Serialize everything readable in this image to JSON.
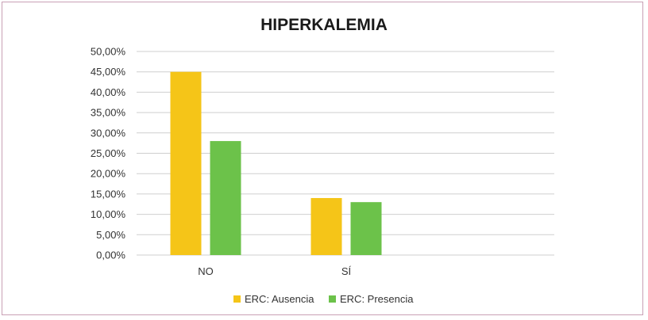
{
  "chart_data": {
    "type": "bar",
    "title": "HIPERKALEMIA",
    "categories": [
      "NO",
      "SÍ"
    ],
    "series": [
      {
        "name": "ERC: Ausencia",
        "values": [
          45.0,
          14.0
        ],
        "color": "#f5c518"
      },
      {
        "name": "ERC: Presencia",
        "values": [
          28.0,
          13.0
        ],
        "color": "#6cc24a"
      }
    ],
    "ylim": [
      0,
      50
    ],
    "yticks": [
      "0,00%",
      "5,00%",
      "10,00%",
      "15,00%",
      "20,00%",
      "25,00%",
      "30,00%",
      "35,00%",
      "40,00%",
      "45,00%",
      "50,00%"
    ],
    "grid": true,
    "legend": "bottom"
  },
  "colors": {
    "grid": "#cfcfcf",
    "border": "#c9a0b5"
  }
}
